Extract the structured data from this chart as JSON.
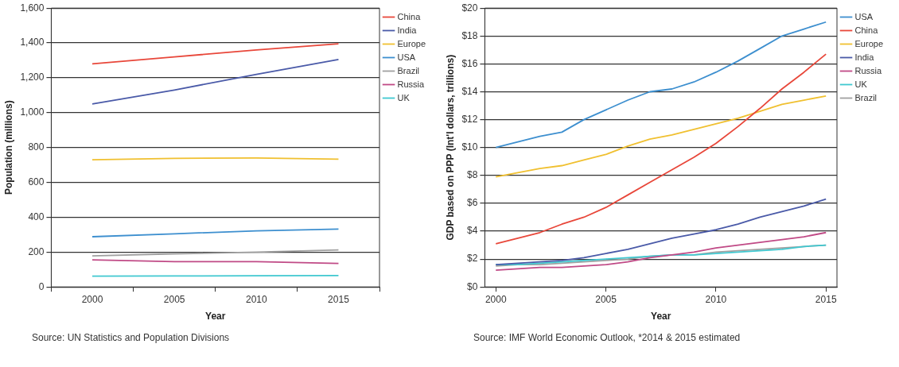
{
  "chart_data": [
    {
      "type": "line",
      "xlabel": "Year",
      "ylabel": "Population (millions)",
      "categories": [
        "2000",
        "2005",
        "2010",
        "2015"
      ],
      "series": [
        {
          "name": "China",
          "color": "#e8473a",
          "values": [
            1280,
            1320,
            1360,
            1395
          ]
        },
        {
          "name": "India",
          "color": "#4a5aa8",
          "values": [
            1050,
            1130,
            1220,
            1305
          ]
        },
        {
          "name": "Europe",
          "color": "#f0c030",
          "values": [
            730,
            738,
            740,
            733
          ]
        },
        {
          "name": "USA",
          "color": "#3d8fcf",
          "values": [
            288,
            305,
            322,
            332
          ]
        },
        {
          "name": "Brazil",
          "color": "#a0a0a0",
          "values": [
            178,
            190,
            200,
            212
          ]
        },
        {
          "name": "Russia",
          "color": "#c04a86",
          "values": [
            155,
            145,
            145,
            135
          ]
        },
        {
          "name": "UK",
          "color": "#40c8d0",
          "values": [
            62,
            63,
            64,
            65
          ]
        }
      ],
      "ylim": [
        0,
        1600
      ],
      "yticks": [
        0,
        200,
        400,
        600,
        800,
        {
          "value": 1000,
          "label": "1,000"
        },
        {
          "value": 1200,
          "label": "1,200"
        },
        {
          "value": 1400,
          "label": "1,400"
        },
        {
          "value": 1600,
          "label": "1,600"
        }
      ],
      "grid": "y",
      "legend": "right",
      "marker": "none",
      "line_style": "solid",
      "annotations": [
        "Source: UN Statistics and Population Divisions"
      ]
    },
    {
      "type": "line",
      "xlabel": "Year",
      "ylabel": "GDP based on PPP (Int'l dollars, trillions)",
      "x": [
        2000,
        2001,
        2002,
        2003,
        2004,
        2005,
        2006,
        2007,
        2008,
        2009,
        2010,
        2011,
        2012,
        2013,
        2014,
        2015
      ],
      "series": [
        {
          "name": "USA",
          "color": "#3d8fcf",
          "values": [
            10.0,
            10.4,
            10.8,
            11.1,
            12.0,
            12.7,
            13.4,
            14.0,
            14.2,
            14.7,
            15.4,
            16.2,
            17.1,
            18.0,
            18.5,
            19.0
          ]
        },
        {
          "name": "China",
          "color": "#e8473a",
          "values": [
            3.1,
            3.5,
            3.9,
            4.5,
            5.0,
            5.7,
            6.6,
            7.5,
            8.4,
            9.3,
            10.3,
            11.5,
            12.8,
            14.2,
            15.4,
            16.7
          ]
        },
        {
          "name": "Europe",
          "color": "#f0c030",
          "values": [
            7.9,
            8.2,
            8.5,
            8.7,
            9.1,
            9.5,
            10.1,
            10.6,
            10.9,
            11.3,
            11.7,
            12.1,
            12.6,
            13.1,
            13.4,
            13.7
          ]
        },
        {
          "name": "India",
          "color": "#4a5aa8",
          "values": [
            1.6,
            1.7,
            1.8,
            1.9,
            2.1,
            2.4,
            2.7,
            3.1,
            3.5,
            3.8,
            4.1,
            4.5,
            5.0,
            5.4,
            5.8,
            6.3
          ]
        },
        {
          "name": "Russia",
          "color": "#c04a86",
          "values": [
            1.2,
            1.3,
            1.4,
            1.4,
            1.5,
            1.6,
            1.8,
            2.1,
            2.3,
            2.5,
            2.8,
            3.0,
            3.2,
            3.4,
            3.6,
            3.9
          ]
        },
        {
          "name": "UK",
          "color": "#40c8d0",
          "values": [
            1.6,
            1.6,
            1.7,
            1.8,
            1.9,
            2.0,
            2.1,
            2.2,
            2.3,
            2.3,
            2.4,
            2.5,
            2.6,
            2.7,
            2.9,
            3.0
          ]
        },
        {
          "name": "Brazil",
          "color": "#a0a0a0",
          "values": [
            1.5,
            1.6,
            1.6,
            1.7,
            1.8,
            1.9,
            2.0,
            2.2,
            2.3,
            2.3,
            2.5,
            2.6,
            2.7,
            2.8,
            2.9,
            3.0
          ]
        }
      ],
      "xlim": [
        1999.5,
        2015.5
      ],
      "xticks": [
        2000,
        2005,
        2010,
        2015
      ],
      "ylim": [
        0,
        20
      ],
      "yticks": [
        {
          "value": 0,
          "label": "$0"
        },
        {
          "value": 2,
          "label": "$2"
        },
        {
          "value": 4,
          "label": "$4"
        },
        {
          "value": 6,
          "label": "$6"
        },
        {
          "value": 8,
          "label": "$8"
        },
        {
          "value": 10,
          "label": "$10"
        },
        {
          "value": 12,
          "label": "$12"
        },
        {
          "value": 14,
          "label": "$14"
        },
        {
          "value": 16,
          "label": "$16"
        },
        {
          "value": 18,
          "label": "$18"
        },
        {
          "value": 20,
          "label": "$20"
        }
      ],
      "grid": "y",
      "legend": "right",
      "marker": "none",
      "line_style": "solid",
      "annotations": [
        "Source: IMF World Economic Outlook, *2014 & 2015 estimated"
      ]
    }
  ]
}
